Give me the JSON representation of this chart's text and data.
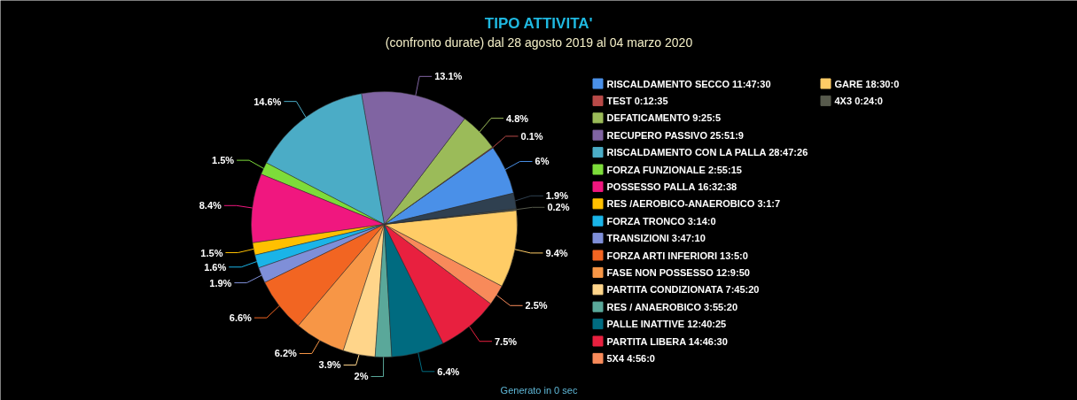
{
  "chart_data": {
    "type": "pie",
    "title": "TIPO ATTIVITA'",
    "subtitle": "(confronto durate) dal 28 agosto 2019 al 04 marzo 2020",
    "categories": [
      "RISCALDAMENTO SECCO 11:47:30",
      "TEST 0:12:35",
      "DEFATICAMENTO 9:25:5",
      "RECUPERO PASSIVO 25:51:9",
      "RISCALDAMENTO CON LA PALLA 28:47:26",
      "FORZA FUNZIONALE 2:55:15",
      "POSSESSO PALLA 16:32:38",
      "RES /AEROBICO-ANAEROBICO 3:1:7",
      "FORZA TRONCO 3:14:0",
      "TRANSIZIONI 3:47:10",
      "FORZA ARTI INFERIORI 13:5:0",
      "FASE NON POSSESSO 12:9:50",
      "PARTITA CONDIZIONATA 7:45:20",
      "RES / ANAEROBICO 3:55:20",
      "PALLE INATTIVE 12:40:25",
      "PARTITA LIBERA 14:46:30",
      "5X4 4:56:0",
      "GARE 18:30:0",
      "4X3 0:24:0",
      null
    ],
    "values": [
      6,
      0.1,
      4.8,
      13.1,
      14.6,
      1.5,
      8.4,
      1.5,
      1.6,
      1.9,
      6.6,
      6.2,
      3.9,
      2,
      6.4,
      7.5,
      2.5,
      9.4,
      0.2,
      1.9
    ],
    "colors": [
      "#4a90e8",
      "#b84a48",
      "#9bbb59",
      "#8064a2",
      "#4bacc6",
      "#7ddc3a",
      "#f0177f",
      "#ffc000",
      "#1ab4e8",
      "#7f8fd8",
      "#f26522",
      "#f79646",
      "#ffd58a",
      "#5aa89a",
      "#006b80",
      "#e8203f",
      "#f88a5a",
      "#ffcc66",
      "#575a4c",
      "#2f4050"
    ],
    "value_labels": [
      "6%",
      "0.1%",
      "4.8%",
      "13.1%",
      "14.6%",
      "1.5%",
      "8.4%",
      "1.5%",
      "1.6%",
      "1.9%",
      "6.6%",
      "6.2%",
      "3.9%",
      "2%",
      "6.4%",
      "7.5%",
      "2.5%",
      "9.4%",
      "0.2%",
      "1.9%"
    ],
    "legend": "right",
    "annotations": [
      "Generato in 0 sec"
    ]
  }
}
